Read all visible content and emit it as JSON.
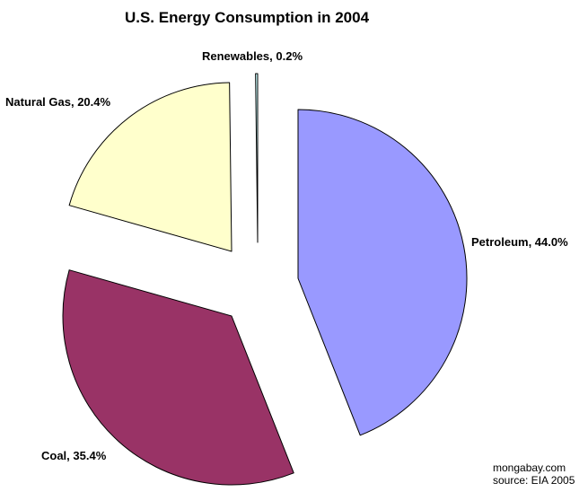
{
  "chart_data": {
    "type": "pie",
    "title": "U.S. Energy Consumption in 2004",
    "exploded": true,
    "slices": [
      {
        "name": "Petroleum",
        "value": 44.0,
        "label": "Petroleum, 44.0%",
        "color": "#9999ff"
      },
      {
        "name": "Coal",
        "value": 35.4,
        "label": "Coal, 35.4%",
        "color": "#993366"
      },
      {
        "name": "Natural Gas",
        "value": 20.4,
        "label": "Natural Gas, 20.4%",
        "color": "#ffffcc"
      },
      {
        "name": "Renewables",
        "value": 0.2,
        "label": "Renewables, 0.2%",
        "color": "#ccffff"
      }
    ]
  },
  "credits": {
    "site": "mongabay.com",
    "source": "source: EIA 2005"
  }
}
